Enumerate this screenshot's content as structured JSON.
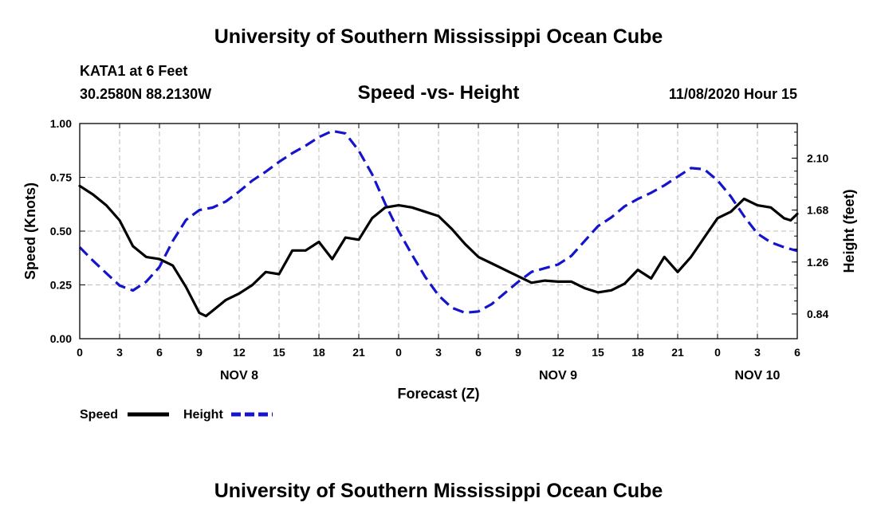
{
  "header": {
    "title": "University of Southern Mississippi Ocean Cube",
    "station": "KATA1 at 6 Feet",
    "coords": "30.2580N 88.2130W",
    "subtitle": "Speed -vs- Height",
    "datetime": "11/08/2020 Hour 15"
  },
  "footer": {
    "title": "University of Southern Mississippi Ocean Cube"
  },
  "colors": {
    "speed": "#000000",
    "height": "#1414cc",
    "grid": "#bdbdbd"
  },
  "chart_data": {
    "type": "line",
    "title": "Speed -vs- Height",
    "xlabel": "Forecast (Z)",
    "ylabel": "Speed (Knots)",
    "y2label": "Height (feet)",
    "xlim": [
      0,
      54
    ],
    "ylim": [
      0,
      1.0
    ],
    "y2lim": [
      0.64,
      2.38
    ],
    "x_ticks": [
      0,
      3,
      6,
      9,
      12,
      15,
      18,
      21,
      24,
      27,
      30,
      33,
      36,
      39,
      42,
      45,
      48,
      51,
      54
    ],
    "x_tick_labels": [
      "0",
      "3",
      "6",
      "9",
      "12",
      "15",
      "18",
      "21",
      "0",
      "3",
      "6",
      "9",
      "12",
      "15",
      "18",
      "21",
      "0",
      "3",
      "6"
    ],
    "y_ticks": [
      0,
      0.25,
      0.5,
      0.75,
      1.0
    ],
    "y_tick_labels": [
      "0.00",
      "0.25",
      "0.50",
      "0.75",
      "1.00"
    ],
    "y2_ticks": [
      0.84,
      1.26,
      1.68,
      2.1
    ],
    "y2_tick_labels": [
      "0.84",
      "1.26",
      "1.68",
      "2.10"
    ],
    "date_labels": [
      {
        "x": 12,
        "label": "NOV 8"
      },
      {
        "x": 36,
        "label": "NOV 9"
      },
      {
        "x": 51,
        "label": "NOV 10"
      }
    ],
    "grid": true,
    "legend": "bottom-left",
    "series": [
      {
        "name": "Speed",
        "axis": "left",
        "style": "solid",
        "x": [
          0,
          1,
          2,
          3,
          4,
          5,
          6,
          7,
          8,
          9,
          9.5,
          10,
          11,
          12,
          13,
          14,
          15,
          16,
          17,
          18,
          19,
          20,
          21,
          22,
          23,
          24,
          25,
          26,
          27,
          28,
          29,
          30,
          31,
          32,
          33,
          34,
          35,
          36,
          37,
          38,
          39,
          40,
          41,
          42,
          43,
          44,
          45,
          46,
          47,
          48,
          49,
          50,
          51,
          52,
          53,
          53.5,
          54
        ],
        "values": [
          0.71,
          0.67,
          0.62,
          0.55,
          0.43,
          0.38,
          0.37,
          0.34,
          0.24,
          0.12,
          0.105,
          0.13,
          0.18,
          0.21,
          0.25,
          0.31,
          0.3,
          0.41,
          0.41,
          0.45,
          0.37,
          0.47,
          0.46,
          0.56,
          0.61,
          0.62,
          0.61,
          0.59,
          0.57,
          0.51,
          0.44,
          0.38,
          0.35,
          0.32,
          0.29,
          0.26,
          0.27,
          0.265,
          0.265,
          0.235,
          0.215,
          0.225,
          0.255,
          0.32,
          0.28,
          0.38,
          0.31,
          0.38,
          0.47,
          0.56,
          0.59,
          0.65,
          0.62,
          0.61,
          0.56,
          0.55,
          0.58
        ]
      },
      {
        "name": "Height",
        "axis": "right",
        "style": "dashed",
        "x": [
          0,
          1,
          2,
          3,
          4,
          5,
          6,
          7,
          8,
          9,
          10,
          11,
          12,
          13,
          14,
          15,
          16,
          17,
          18,
          19,
          20,
          21,
          22,
          23,
          24,
          25,
          26,
          27,
          28,
          29,
          30,
          31,
          32,
          33,
          34,
          35,
          36,
          37,
          38,
          39,
          40,
          41,
          42,
          43,
          44,
          45,
          46,
          47,
          48,
          49,
          50,
          51,
          52,
          53,
          54
        ],
        "values": [
          1.38,
          1.27,
          1.17,
          1.07,
          1.03,
          1.1,
          1.22,
          1.43,
          1.6,
          1.68,
          1.7,
          1.75,
          1.83,
          1.92,
          1.99,
          2.07,
          2.14,
          2.2,
          2.27,
          2.32,
          2.3,
          2.16,
          1.97,
          1.73,
          1.51,
          1.32,
          1.14,
          0.99,
          0.89,
          0.85,
          0.86,
          0.92,
          1.01,
          1.1,
          1.18,
          1.21,
          1.24,
          1.31,
          1.43,
          1.55,
          1.62,
          1.71,
          1.77,
          1.82,
          1.88,
          1.95,
          2.02,
          2.01,
          1.92,
          1.79,
          1.63,
          1.49,
          1.42,
          1.38,
          1.35
        ]
      }
    ]
  }
}
